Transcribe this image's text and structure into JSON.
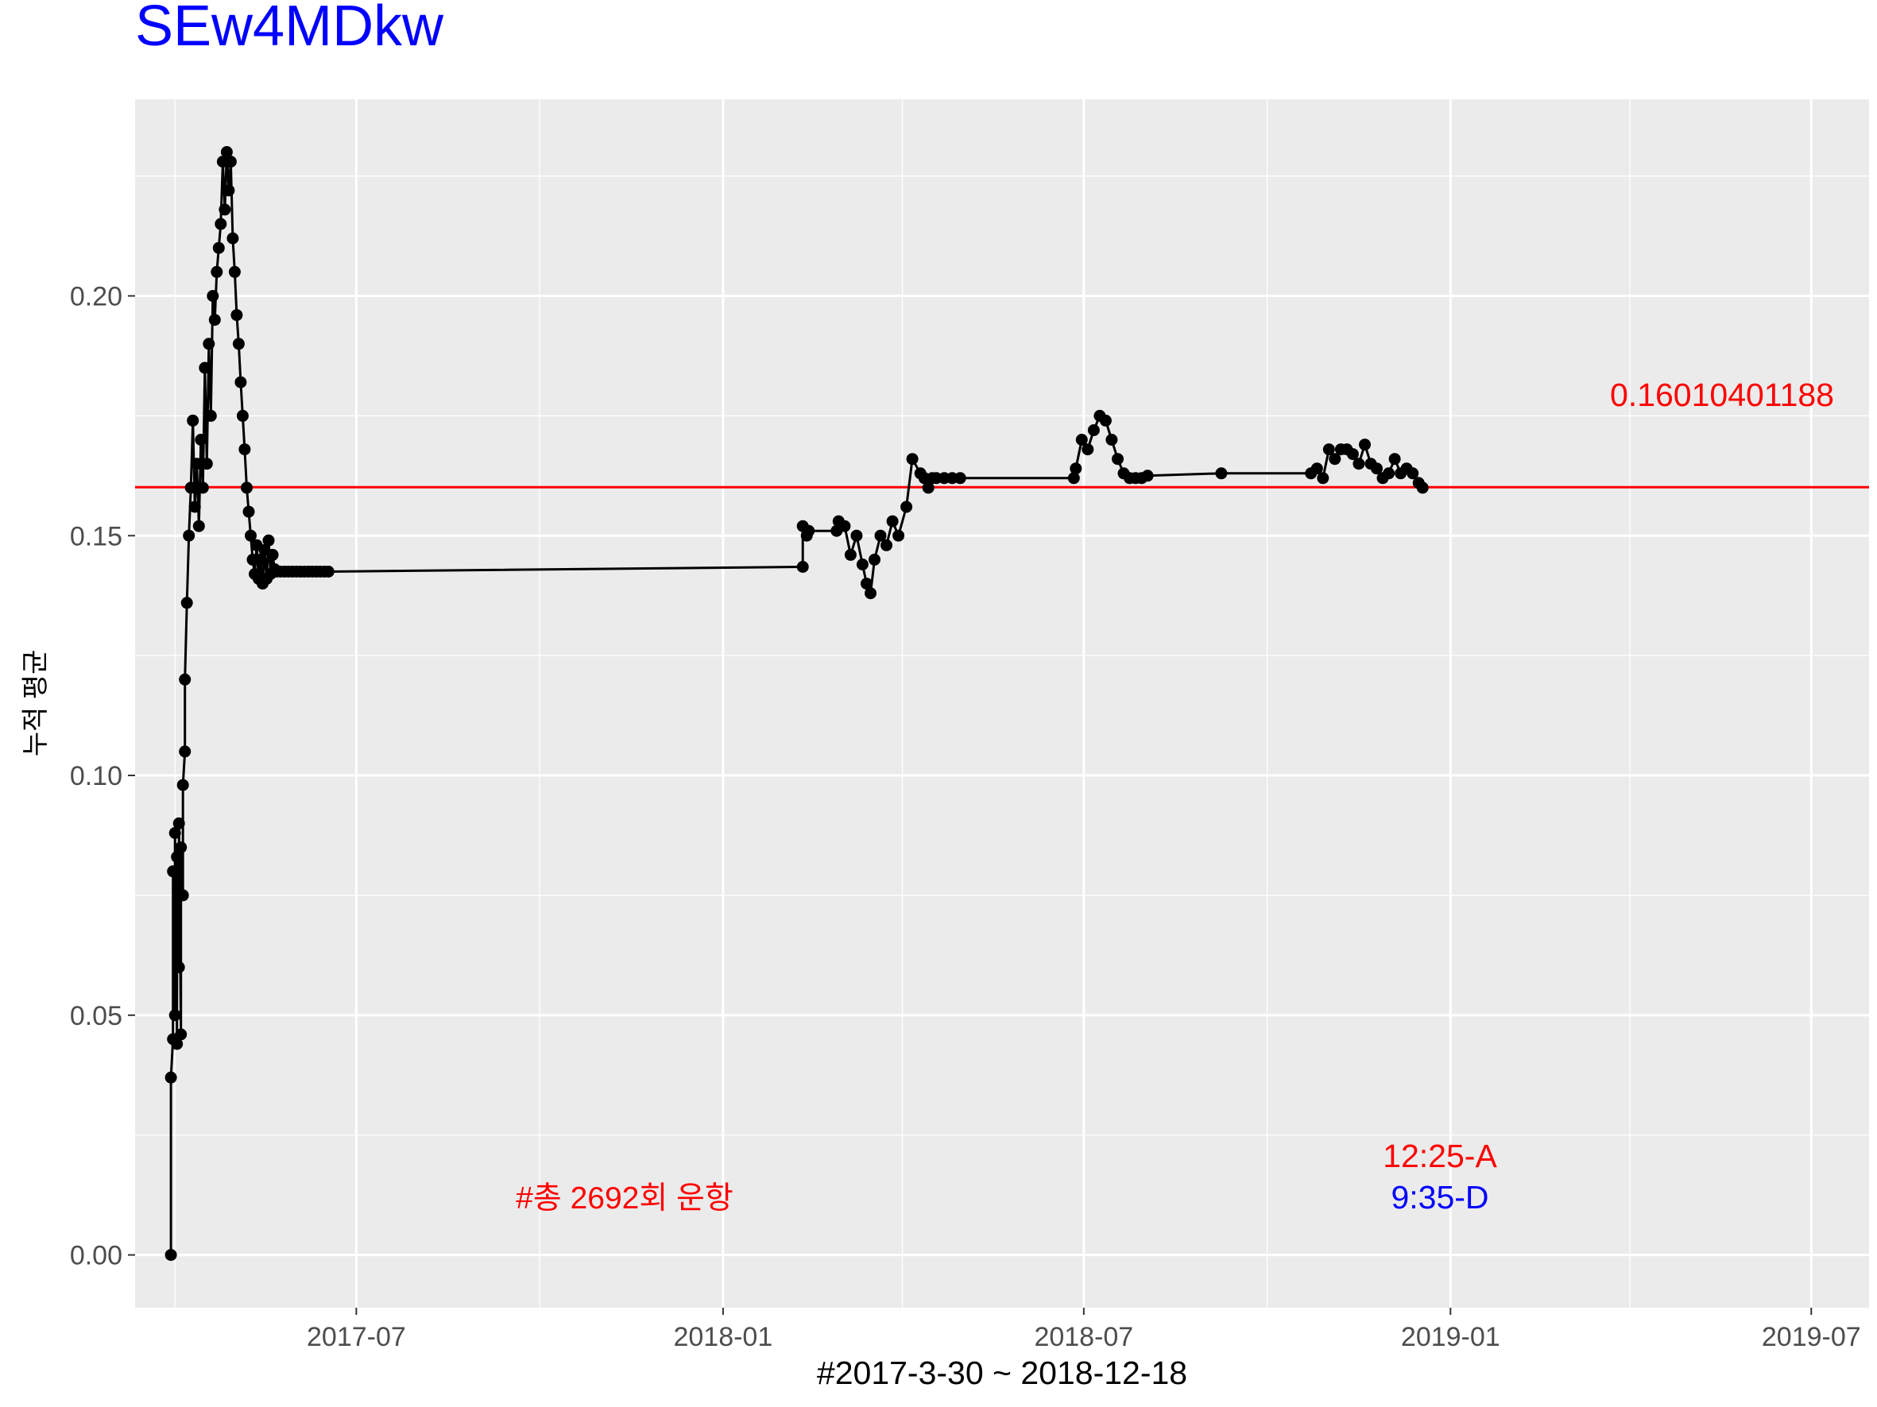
{
  "chart_data": {
    "type": "line",
    "title": "SEw4MDkw",
    "xlabel": "#2017-3-30 ~ 2018-12-18",
    "ylabel": "누적 평균",
    "x_ticks": [
      "2017-07",
      "2018-01",
      "2018-07",
      "2019-01",
      "2019-07"
    ],
    "y_ticks": [
      "0.00",
      "0.05",
      "0.10",
      "0.15",
      "0.20"
    ],
    "xlim": [
      "2017-03-12",
      "2019-07-30"
    ],
    "ylim": [
      -0.011,
      0.241
    ],
    "grid": true,
    "reference_line": {
      "value": 0.16010401188,
      "label": "0.16010401188",
      "color": "#ff0000"
    },
    "annotations": {
      "total_runs": "#총 2692회 운항",
      "arrival": "12:25-A",
      "departure": "9:35-D"
    },
    "colors": {
      "title": "#0000ff",
      "reference": "#ff0000",
      "series": "#000000",
      "panel": "#ebebeb",
      "arrival": "#ff0000",
      "departure": "#0000ff"
    },
    "series": [
      {
        "x": [
          "2017-03-30",
          "2017-03-30",
          "2017-03-31",
          "2017-03-31",
          "2017-04-01",
          "2017-04-01",
          "2017-04-02",
          "2017-04-02",
          "2017-04-03",
          "2017-04-03",
          "2017-04-04",
          "2017-04-04",
          "2017-04-05",
          "2017-04-05",
          "2017-04-06",
          "2017-04-06",
          "2017-04-07",
          "2017-04-08",
          "2017-04-09",
          "2017-04-10",
          "2017-04-11",
          "2017-04-12",
          "2017-04-13",
          "2017-04-14",
          "2017-04-15",
          "2017-04-16",
          "2017-04-17",
          "2017-04-18",
          "2017-04-19",
          "2017-04-20",
          "2017-04-21",
          "2017-04-22",
          "2017-04-23",
          "2017-04-24",
          "2017-04-25",
          "2017-04-26",
          "2017-04-27",
          "2017-04-28",
          "2017-04-29",
          "2017-04-30",
          "2017-05-01",
          "2017-05-02",
          "2017-05-03",
          "2017-05-04",
          "2017-05-05",
          "2017-05-06",
          "2017-05-07",
          "2017-05-08",
          "2017-05-09",
          "2017-05-10",
          "2017-05-11",
          "2017-05-12",
          "2017-05-13",
          "2017-05-14",
          "2017-05-15",
          "2017-05-16",
          "2017-05-17",
          "2017-05-18",
          "2017-05-19",
          "2017-05-20",
          "2017-05-21",
          "2017-05-22",
          "2017-05-24",
          "2017-05-26",
          "2017-05-28",
          "2017-05-30",
          "2017-06-01",
          "2017-06-03",
          "2017-06-05",
          "2017-06-07",
          "2017-06-09",
          "2017-06-11",
          "2017-06-13",
          "2017-06-15",
          "2017-06-17",
          "2018-02-10",
          "2018-02-10",
          "2018-02-12",
          "2018-02-13",
          "2018-02-27",
          "2018-02-28",
          "2018-03-03",
          "2018-03-06",
          "2018-03-09",
          "2018-03-12",
          "2018-03-14",
          "2018-03-16",
          "2018-03-18",
          "2018-03-21",
          "2018-03-24",
          "2018-03-27",
          "2018-03-30",
          "2018-04-03",
          "2018-04-06",
          "2018-04-10",
          "2018-04-12",
          "2018-04-14",
          "2018-04-16",
          "2018-04-18",
          "2018-04-22",
          "2018-04-26",
          "2018-04-30",
          "2018-06-26",
          "2018-06-27",
          "2018-06-30",
          "2018-07-03",
          "2018-07-06",
          "2018-07-09",
          "2018-07-12",
          "2018-07-15",
          "2018-07-18",
          "2018-07-21",
          "2018-07-24",
          "2018-07-27",
          "2018-07-30",
          "2018-08-02",
          "2018-09-08",
          "2018-10-23",
          "2018-10-26",
          "2018-10-29",
          "2018-11-01",
          "2018-11-04",
          "2018-11-07",
          "2018-11-10",
          "2018-11-13",
          "2018-11-16",
          "2018-11-19",
          "2018-11-22",
          "2018-11-25",
          "2018-11-28",
          "2018-12-01",
          "2018-12-04",
          "2018-12-07",
          "2018-12-10",
          "2018-12-13",
          "2018-12-16",
          "2018-12-18"
        ],
        "y": [
          0.0,
          0.037,
          0.045,
          0.08,
          0.05,
          0.088,
          0.044,
          0.083,
          0.06,
          0.09,
          0.046,
          0.085,
          0.075,
          0.098,
          0.105,
          0.12,
          0.136,
          0.15,
          0.16,
          0.174,
          0.156,
          0.165,
          0.152,
          0.17,
          0.16,
          0.185,
          0.165,
          0.19,
          0.175,
          0.2,
          0.195,
          0.205,
          0.21,
          0.215,
          0.228,
          0.218,
          0.23,
          0.222,
          0.228,
          0.212,
          0.205,
          0.196,
          0.19,
          0.182,
          0.175,
          0.168,
          0.16,
          0.155,
          0.15,
          0.145,
          0.142,
          0.148,
          0.141,
          0.145,
          0.14,
          0.147,
          0.141,
          0.149,
          0.142,
          0.146,
          0.143,
          0.1425,
          0.1425,
          0.1425,
          0.1425,
          0.1425,
          0.1425,
          0.1425,
          0.1425,
          0.1425,
          0.1425,
          0.1425,
          0.1425,
          0.1425,
          0.1425,
          0.1435,
          0.152,
          0.15,
          0.151,
          0.151,
          0.153,
          0.152,
          0.146,
          0.15,
          0.144,
          0.14,
          0.138,
          0.145,
          0.15,
          0.148,
          0.153,
          0.15,
          0.156,
          0.166,
          0.163,
          0.162,
          0.16,
          0.162,
          0.162,
          0.162,
          0.162,
          0.162,
          0.162,
          0.164,
          0.17,
          0.168,
          0.172,
          0.175,
          0.174,
          0.17,
          0.166,
          0.163,
          0.162,
          0.162,
          0.162,
          0.1625,
          0.163,
          0.163,
          0.164,
          0.162,
          0.168,
          0.166,
          0.168,
          0.168,
          0.167,
          0.165,
          0.169,
          0.165,
          0.164,
          0.162,
          0.163,
          0.166,
          0.163,
          0.164,
          0.163,
          0.161,
          0.16
        ]
      }
    ]
  }
}
